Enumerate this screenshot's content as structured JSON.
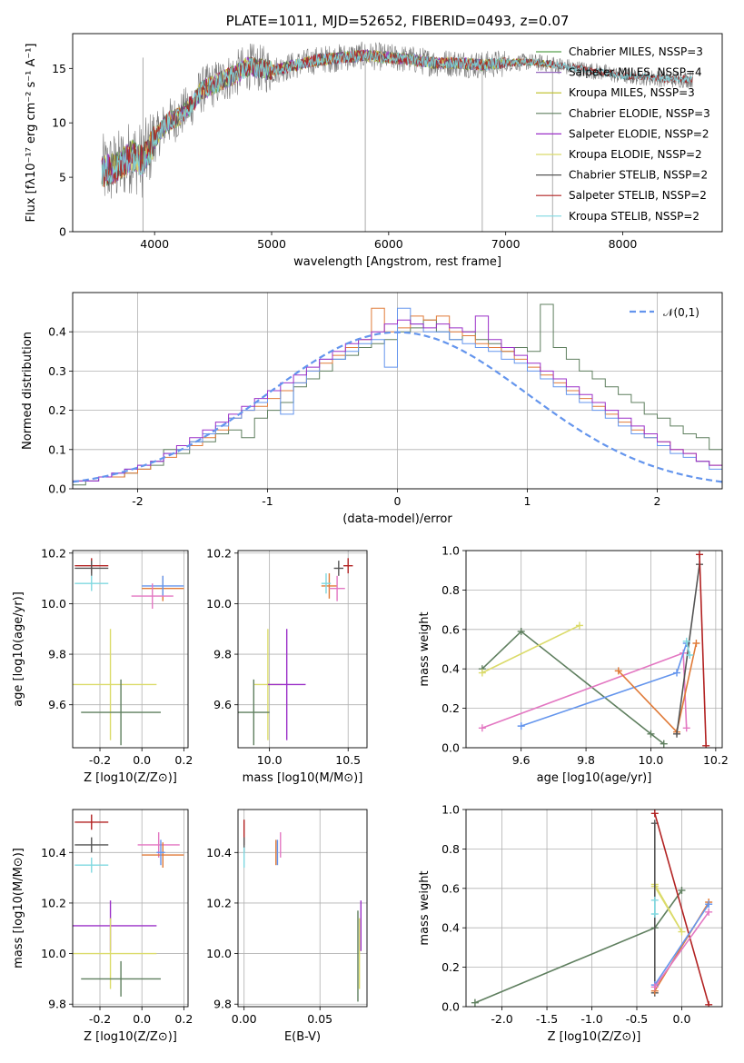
{
  "chart_data": [
    {
      "type": "line",
      "title": "PLATE=1011, MJD=52652, FIBERID=0493, z=0.07",
      "xlabel": "wavelength [Angstrom, rest frame]",
      "ylabel": "Flux [fλ10⁻¹⁷ erg cm⁻² s⁻¹ A⁻¹]",
      "xlim": [
        3300,
        8850
      ],
      "ylim": [
        0,
        18.2
      ],
      "xticks": [
        4000,
        5000,
        6000,
        7000,
        8000
      ],
      "yticks": [
        0,
        5,
        10,
        15
      ],
      "grid": false,
      "legend": "top-right",
      "continuum_shape": {
        "x": [
          3550,
          3700,
          3800,
          3900,
          4000,
          4100,
          4200,
          4300,
          4400,
          4500,
          4600,
          4700,
          4800,
          4900,
          5000,
          5200,
          5400,
          5600,
          5800,
          6000,
          6200,
          6400,
          6600,
          6800,
          7000,
          7200,
          7400,
          7600,
          7800,
          8000,
          8200,
          8400
        ],
        "y": [
          5.5,
          6.0,
          7.0,
          6.5,
          8.5,
          10.0,
          10.5,
          11.5,
          13.0,
          13.5,
          14.0,
          14.5,
          15.2,
          15.0,
          14.8,
          15.3,
          15.8,
          16.0,
          16.2,
          16.0,
          15.8,
          15.5,
          15.5,
          15.3,
          15.5,
          15.6,
          15.4,
          15.0,
          14.7,
          14.3,
          14.2,
          14.0
        ]
      },
      "series": [
        {
          "name": "Chabrier MILES, N_SSP=3",
          "color": "#59a14f",
          "xrange": [
            3550,
            7400
          ]
        },
        {
          "name": "Salpeter MILES, N_SSP=4",
          "color": "#9467bd",
          "xrange": [
            3550,
            7400
          ]
        },
        {
          "name": "Kroupa MILES, N_SSP=3",
          "color": "#bcbd22",
          "xrange": [
            3550,
            7400
          ]
        },
        {
          "name": "Chabrier ELODIE, N_SSP=3",
          "color": "#5f7f5f",
          "xrange": [
            3550,
            6800
          ]
        },
        {
          "name": "Salpeter ELODIE, N_SSP=2",
          "color": "#9b30c8",
          "xrange": [
            3550,
            6800
          ]
        },
        {
          "name": "Kroupa ELODIE, N_SSP=2",
          "color": "#dbdb6a",
          "xrange": [
            3550,
            6800
          ]
        },
        {
          "name": "Chabrier STELIB, N_SSP=2",
          "color": "#555555",
          "xrange": [
            3550,
            8600
          ]
        },
        {
          "name": "Salpeter STELIB, N_SSP=2",
          "color": "#b22222",
          "xrange": [
            3550,
            8600
          ]
        },
        {
          "name": "Kroupa STELIB, N_SSP=2",
          "color": "#7fd8e0",
          "xrange": [
            3550,
            8600
          ]
        }
      ]
    },
    {
      "type": "bar",
      "xlabel": "(data-model)/error",
      "ylabel": "Normed distribution",
      "xlim": [
        -2.5,
        2.5
      ],
      "ylim": [
        0,
        0.5
      ],
      "xticks": [
        -2,
        -1,
        0,
        1,
        2
      ],
      "yticks": [
        0.0,
        0.1,
        0.2,
        0.3,
        0.4
      ],
      "grid": true,
      "legend": "top-right",
      "normal_curve": {
        "name": "𝒩(0,1)",
        "color": "#6495ed"
      },
      "bin_edges_start": -2.5,
      "bin_width": 0.1,
      "histograms": [
        {
          "color": "#5f7f5f",
          "values": [
            0.01,
            0.02,
            0.03,
            0.03,
            0.04,
            0.05,
            0.06,
            0.1,
            0.09,
            0.12,
            0.12,
            0.14,
            0.15,
            0.13,
            0.18,
            0.2,
            0.22,
            0.26,
            0.28,
            0.3,
            0.33,
            0.34,
            0.36,
            0.37,
            0.38,
            0.4,
            0.41,
            0.43,
            0.4,
            0.38,
            0.4,
            0.38,
            0.37,
            0.35,
            0.36,
            0.35,
            0.47,
            0.36,
            0.33,
            0.3,
            0.28,
            0.26,
            0.24,
            0.22,
            0.19,
            0.18,
            0.16,
            0.14,
            0.13,
            0.1
          ]
        },
        {
          "color": "#e07b39",
          "values": [
            0.02,
            0.02,
            0.03,
            0.03,
            0.04,
            0.05,
            0.07,
            0.08,
            0.1,
            0.11,
            0.13,
            0.15,
            0.18,
            0.2,
            0.21,
            0.23,
            0.25,
            0.27,
            0.3,
            0.32,
            0.34,
            0.36,
            0.38,
            0.46,
            0.4,
            0.41,
            0.44,
            0.43,
            0.44,
            0.4,
            0.39,
            0.37,
            0.36,
            0.35,
            0.33,
            0.31,
            0.29,
            0.27,
            0.25,
            0.23,
            0.21,
            0.19,
            0.17,
            0.15,
            0.13,
            0.12,
            0.1,
            0.09,
            0.07,
            0.06
          ]
        },
        {
          "color": "#6495ed",
          "values": [
            0.02,
            0.02,
            0.03,
            0.04,
            0.05,
            0.06,
            0.07,
            0.09,
            0.1,
            0.12,
            0.14,
            0.16,
            0.18,
            0.2,
            0.22,
            0.25,
            0.19,
            0.27,
            0.3,
            0.33,
            0.33,
            0.35,
            0.37,
            0.38,
            0.31,
            0.46,
            0.42,
            0.4,
            0.4,
            0.38,
            0.37,
            0.36,
            0.35,
            0.33,
            0.32,
            0.3,
            0.28,
            0.26,
            0.24,
            0.22,
            0.2,
            0.18,
            0.16,
            0.14,
            0.13,
            0.11,
            0.09,
            0.08,
            0.07,
            0.05
          ]
        },
        {
          "color": "#9b30c8",
          "values": [
            0.02,
            0.02,
            0.03,
            0.04,
            0.05,
            0.06,
            0.07,
            0.09,
            0.11,
            0.13,
            0.15,
            0.17,
            0.19,
            0.21,
            0.23,
            0.25,
            0.27,
            0.29,
            0.31,
            0.33,
            0.35,
            0.37,
            0.38,
            0.4,
            0.42,
            0.43,
            0.42,
            0.41,
            0.42,
            0.41,
            0.4,
            0.44,
            0.38,
            0.36,
            0.34,
            0.32,
            0.3,
            0.28,
            0.26,
            0.24,
            0.22,
            0.2,
            0.18,
            0.16,
            0.14,
            0.12,
            0.1,
            0.09,
            0.07,
            0.06
          ]
        }
      ]
    },
    {
      "type": "scatter",
      "xlabel": "Z [log10(Z/Z⊙)]",
      "ylabel": "age  [log10(age/yr)]",
      "xlim": [
        -0.33,
        0.22
      ],
      "ylim": [
        9.43,
        10.21
      ],
      "xticks": [
        -0.2,
        0.0,
        0.2
      ],
      "yticks": [
        9.6,
        9.8,
        10.0,
        10.2
      ],
      "grid": true,
      "points": [
        {
          "x": -0.15,
          "y": 9.68,
          "xerr": 0.22,
          "yerr": 0.22,
          "color": "#dbdb6a"
        },
        {
          "x": -0.1,
          "y": 9.57,
          "xerr": 0.19,
          "yerr": 0.13,
          "color": "#5f7f5f"
        },
        {
          "x": -0.24,
          "y": 10.15,
          "xerr": 0.08,
          "yerr": 0.03,
          "color": "#b22222"
        },
        {
          "x": -0.24,
          "y": 10.14,
          "xerr": 0.08,
          "yerr": 0.03,
          "color": "#555555"
        },
        {
          "x": -0.24,
          "y": 10.08,
          "xerr": 0.08,
          "yerr": 0.03,
          "color": "#7fd8e0"
        },
        {
          "x": 0.1,
          "y": 10.06,
          "xerr": 0.1,
          "yerr": 0.05,
          "color": "#e07b39"
        },
        {
          "x": 0.1,
          "y": 10.07,
          "xerr": 0.1,
          "yerr": 0.04,
          "color": "#6495ed"
        },
        {
          "x": 0.05,
          "y": 10.03,
          "xerr": 0.1,
          "yerr": 0.05,
          "color": "#e377c2"
        }
      ]
    },
    {
      "type": "scatter",
      "xlabel": "mass [log10(M/M⊙)]",
      "ylabel": "",
      "xlim": [
        9.8,
        10.62
      ],
      "ylim": [
        9.43,
        10.21
      ],
      "xticks": [
        9.5,
        10.0,
        10.5
      ],
      "yticks": [
        9.6,
        9.8,
        10.0,
        10.2
      ],
      "grid": true,
      "points": [
        {
          "x": 9.99,
          "y": 9.68,
          "xerr": 0.09,
          "yerr": 0.22,
          "color": "#dbdb6a"
        },
        {
          "x": 10.11,
          "y": 9.68,
          "xerr": 0.12,
          "yerr": 0.22,
          "color": "#9b30c8"
        },
        {
          "x": 9.9,
          "y": 9.57,
          "xerr": 0.1,
          "yerr": 0.13,
          "color": "#5f7f5f"
        },
        {
          "x": 10.5,
          "y": 10.15,
          "xerr": 0.03,
          "yerr": 0.03,
          "color": "#b22222"
        },
        {
          "x": 10.44,
          "y": 10.14,
          "xerr": 0.03,
          "yerr": 0.03,
          "color": "#555555"
        },
        {
          "x": 10.38,
          "y": 10.07,
          "xerr": 0.05,
          "yerr": 0.05,
          "color": "#e07b39"
        },
        {
          "x": 10.43,
          "y": 10.06,
          "xerr": 0.05,
          "yerr": 0.05,
          "color": "#e377c2"
        },
        {
          "x": 10.36,
          "y": 10.08,
          "xerr": 0.03,
          "yerr": 0.04,
          "color": "#7fd8e0"
        }
      ]
    },
    {
      "type": "line",
      "xlabel": "age  [log10(age/yr)]",
      "ylabel": "mass weight",
      "xlim": [
        9.43,
        10.22
      ],
      "ylim": [
        0.0,
        1.0
      ],
      "xticks": [
        9.6,
        9.8,
        10.0,
        10.2
      ],
      "yticks": [
        0.0,
        0.2,
        0.4,
        0.6,
        0.8,
        1.0
      ],
      "grid": true,
      "series": [
        {
          "color": "#5f7f5f",
          "x": [
            9.48,
            9.6,
            10.0,
            10.04
          ],
          "y": [
            0.4,
            0.59,
            0.07,
            0.02
          ]
        },
        {
          "color": "#dbdb6a",
          "x": [
            9.48,
            9.78
          ],
          "y": [
            0.38,
            0.62
          ]
        },
        {
          "color": "#e377c2",
          "x": [
            9.48,
            10.1,
            10.11
          ],
          "y": [
            0.1,
            0.48,
            0.1
          ]
        },
        {
          "color": "#6495ed",
          "x": [
            9.6,
            10.08,
            10.11
          ],
          "y": [
            0.11,
            0.38,
            0.53
          ]
        },
        {
          "color": "#e07b39",
          "x": [
            9.9,
            10.08,
            10.14
          ],
          "y": [
            0.39,
            0.08,
            0.53
          ]
        },
        {
          "color": "#555555",
          "x": [
            10.08,
            10.15
          ],
          "y": [
            0.07,
            0.93
          ]
        },
        {
          "color": "#b22222",
          "x": [
            10.15,
            10.17
          ],
          "y": [
            0.98,
            0.01
          ]
        },
        {
          "color": "#7fd8e0",
          "x": [
            10.11,
            10.12
          ],
          "y": [
            0.54,
            0.47
          ]
        }
      ]
    },
    {
      "type": "scatter",
      "xlabel": "Z [log10(Z/Z⊙)]",
      "ylabel": "mass [log10(M/M⊙)]",
      "xlim": [
        -0.33,
        0.22
      ],
      "ylim": [
        9.79,
        10.57
      ],
      "xticks": [
        -0.2,
        0.0,
        0.2
      ],
      "yticks": [
        9.8,
        10.0,
        10.2,
        10.4
      ],
      "grid": true,
      "points": [
        {
          "x": -0.24,
          "y": 10.52,
          "xerr": 0.08,
          "yerr": 0.03,
          "color": "#b22222"
        },
        {
          "x": -0.24,
          "y": 10.43,
          "xerr": 0.08,
          "yerr": 0.03,
          "color": "#555555"
        },
        {
          "x": -0.24,
          "y": 10.35,
          "xerr": 0.08,
          "yerr": 0.03,
          "color": "#7fd8e0"
        },
        {
          "x": 0.08,
          "y": 10.43,
          "xerr": 0.1,
          "yerr": 0.05,
          "color": "#e377c2"
        },
        {
          "x": 0.1,
          "y": 10.39,
          "xerr": 0.1,
          "yerr": 0.05,
          "color": "#e07b39"
        },
        {
          "x": 0.09,
          "y": 10.4,
          "xerr": 0.02,
          "yerr": 0.05,
          "color": "#6495ed"
        },
        {
          "x": -0.15,
          "y": 10.11,
          "xerr": 0.22,
          "yerr": 0.1,
          "color": "#9b30c8"
        },
        {
          "x": -0.15,
          "y": 10.0,
          "xerr": 0.22,
          "yerr": 0.14,
          "color": "#dbdb6a"
        },
        {
          "x": -0.1,
          "y": 9.9,
          "xerr": 0.19,
          "yerr": 0.07,
          "color": "#5f7f5f"
        }
      ]
    },
    {
      "type": "scatter",
      "xlabel": "E(B-V)",
      "ylabel": "",
      "xlim": [
        -0.004,
        0.081
      ],
      "ylim": [
        9.79,
        10.57
      ],
      "xticks": [
        0.0,
        0.05
      ],
      "yticks": [
        9.8,
        10.0,
        10.2,
        10.4
      ],
      "grid": true,
      "points": [
        {
          "x": 0.0,
          "y": 10.48,
          "yerr": 0.05,
          "color": "#b22222"
        },
        {
          "x": 0.0,
          "y": 10.43,
          "yerr": 0.03,
          "color": "#555555"
        },
        {
          "x": 0.0,
          "y": 10.38,
          "yerr": 0.04,
          "color": "#7fd8e0"
        },
        {
          "x": 0.021,
          "y": 10.4,
          "yerr": 0.05,
          "color": "#e07b39"
        },
        {
          "x": 0.022,
          "y": 10.4,
          "yerr": 0.05,
          "color": "#6495ed"
        },
        {
          "x": 0.024,
          "y": 10.43,
          "yerr": 0.05,
          "color": "#e377c2"
        },
        {
          "x": 0.077,
          "y": 10.11,
          "yerr": 0.1,
          "color": "#9b30c8"
        },
        {
          "x": 0.076,
          "y": 10.0,
          "yerr": 0.14,
          "color": "#dbdb6a"
        },
        {
          "x": 0.075,
          "y": 9.99,
          "yerr": 0.18,
          "color": "#5f7f5f"
        }
      ]
    },
    {
      "type": "line",
      "xlabel": "Z [log10(Z/Z⊙)]",
      "ylabel": "mass weight",
      "xlim": [
        -2.4,
        0.45
      ],
      "ylim": [
        0.0,
        1.0
      ],
      "xticks": [
        -2.0,
        -1.5,
        -1.0,
        -0.5,
        0.0
      ],
      "yticks": [
        0.0,
        0.2,
        0.4,
        0.6,
        0.8,
        1.0
      ],
      "grid": true,
      "series": [
        {
          "color": "#5f7f5f",
          "x": [
            -2.3,
            -0.3,
            0.0
          ],
          "y": [
            0.02,
            0.4,
            0.59
          ]
        },
        {
          "color": "#dbdb6a",
          "x": [
            -0.3,
            0.0,
            -0.3
          ],
          "y": [
            0.61,
            0.38,
            0.62
          ]
        },
        {
          "color": "#555555",
          "x": [
            -0.3,
            -0.3
          ],
          "y": [
            0.07,
            0.93
          ]
        },
        {
          "color": "#b22222",
          "x": [
            -0.3,
            0.3
          ],
          "y": [
            0.98,
            0.01
          ]
        },
        {
          "color": "#7fd8e0",
          "x": [
            -0.3,
            -0.3
          ],
          "y": [
            0.47,
            0.54
          ]
        },
        {
          "color": "#e07b39",
          "x": [
            -0.3,
            0.3
          ],
          "y": [
            0.08,
            0.53
          ]
        },
        {
          "color": "#6495ed",
          "x": [
            -0.3,
            0.3
          ],
          "y": [
            0.11,
            0.52
          ]
        },
        {
          "color": "#e377c2",
          "x": [
            -0.3,
            0.3
          ],
          "y": [
            0.1,
            0.48
          ]
        }
      ]
    }
  ]
}
